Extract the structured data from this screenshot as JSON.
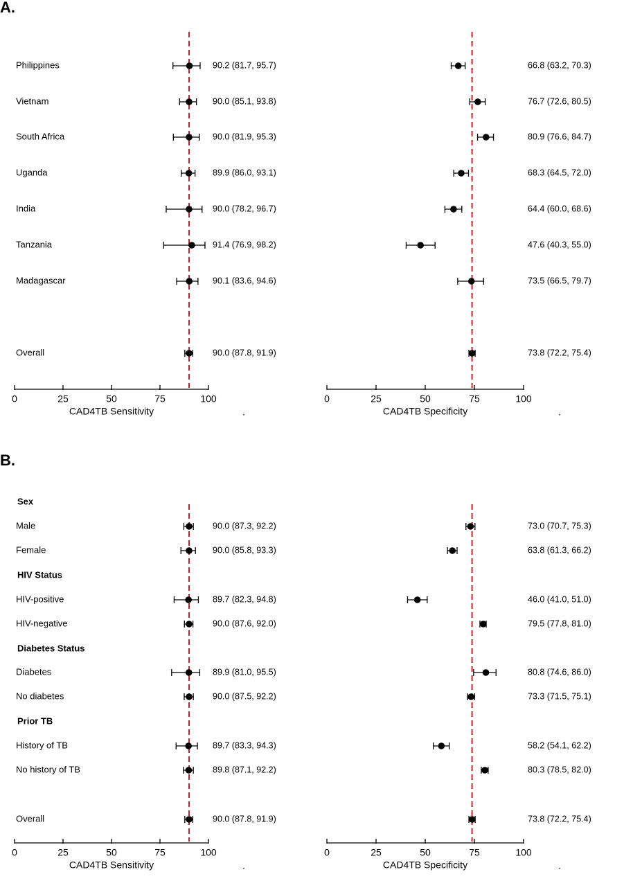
{
  "chart_data": [
    {
      "type": "forest",
      "panel_label": "A.",
      "reference_color": "#c8202a",
      "point_color": "#000000",
      "subplots": [
        {
          "xlabel": "CAD4TB Sensitivity",
          "trailing_mark": ".",
          "xlim": [
            0,
            100
          ],
          "xticks": [
            0,
            25,
            50,
            75,
            100
          ],
          "reference_line": 90,
          "rows": [
            {
              "label": "Philippines",
              "estimate": 90.2,
              "lower": 81.7,
              "upper": 95.7,
              "ci_text": "90.2 (81.7, 95.7)"
            },
            {
              "label": "Vietnam",
              "estimate": 90.0,
              "lower": 85.1,
              "upper": 93.8,
              "ci_text": "90.0 (85.1, 93.8)"
            },
            {
              "label": "South Africa",
              "estimate": 90.0,
              "lower": 81.9,
              "upper": 95.3,
              "ci_text": "90.0 (81.9, 95.3)"
            },
            {
              "label": "Uganda",
              "estimate": 89.9,
              "lower": 86.0,
              "upper": 93.1,
              "ci_text": "89.9 (86.0, 93.1)"
            },
            {
              "label": "India",
              "estimate": 90.0,
              "lower": 78.2,
              "upper": 96.7,
              "ci_text": "90.0 (78.2, 96.7)"
            },
            {
              "label": "Tanzania",
              "estimate": 91.4,
              "lower": 76.9,
              "upper": 98.2,
              "ci_text": "91.4 (76.9, 98.2)"
            },
            {
              "label": "Madagascar",
              "estimate": 90.1,
              "lower": 83.6,
              "upper": 94.6,
              "ci_text": "90.1 (83.6, 94.6)"
            },
            {
              "label": "Overall",
              "estimate": 90.0,
              "lower": 87.8,
              "upper": 91.9,
              "ci_text": "90.0 (87.8, 91.9)"
            }
          ]
        },
        {
          "xlabel": "CAD4TB Specificity",
          "trailing_mark": ".",
          "xlim": [
            0,
            100
          ],
          "xticks": [
            0,
            25,
            50,
            75,
            100
          ],
          "reference_line": 73.8,
          "rows": [
            {
              "label": "Philippines",
              "estimate": 66.8,
              "lower": 63.2,
              "upper": 70.3,
              "ci_text": "66.8 (63.2, 70.3)"
            },
            {
              "label": "Vietnam",
              "estimate": 76.7,
              "lower": 72.6,
              "upper": 80.5,
              "ci_text": "76.7 (72.6, 80.5)"
            },
            {
              "label": "South Africa",
              "estimate": 80.9,
              "lower": 76.6,
              "upper": 84.7,
              "ci_text": "80.9 (76.6, 84.7)"
            },
            {
              "label": "Uganda",
              "estimate": 68.3,
              "lower": 64.5,
              "upper": 72.0,
              "ci_text": "68.3 (64.5, 72.0)"
            },
            {
              "label": "India",
              "estimate": 64.4,
              "lower": 60.0,
              "upper": 68.6,
              "ci_text": "64.4 (60.0, 68.6)"
            },
            {
              "label": "Tanzania",
              "estimate": 47.6,
              "lower": 40.3,
              "upper": 55.0,
              "ci_text": "47.6 (40.3, 55.0)"
            },
            {
              "label": "Madagascar",
              "estimate": 73.5,
              "lower": 66.5,
              "upper": 79.7,
              "ci_text": "73.5 (66.5, 79.7)"
            },
            {
              "label": "Overall",
              "estimate": 73.8,
              "lower": 72.2,
              "upper": 75.4,
              "ci_text": "73.8 (72.2, 75.4)"
            }
          ]
        }
      ]
    },
    {
      "type": "forest",
      "panel_label": "B.",
      "reference_color": "#c8202a",
      "point_color": "#000000",
      "group_headers": [
        "Sex",
        "HIV Status",
        "Diabetes Status",
        "Prior TB"
      ],
      "subplots": [
        {
          "xlabel": "CAD4TB Sensitivity",
          "trailing_mark": ".",
          "xlim": [
            0,
            100
          ],
          "xticks": [
            0,
            25,
            50,
            75,
            100
          ],
          "reference_line": 90,
          "rows": [
            {
              "group": "Sex",
              "label": "Male",
              "estimate": 90.0,
              "lower": 87.3,
              "upper": 92.2,
              "ci_text": "90.0 (87.3, 92.2)"
            },
            {
              "group": "Sex",
              "label": "Female",
              "estimate": 90.0,
              "lower": 85.8,
              "upper": 93.3,
              "ci_text": "90.0 (85.8, 93.3)"
            },
            {
              "group": "HIV Status",
              "label": "HIV-positive",
              "estimate": 89.7,
              "lower": 82.3,
              "upper": 94.8,
              "ci_text": "89.7 (82.3, 94.8)"
            },
            {
              "group": "HIV Status",
              "label": "HIV-negative",
              "estimate": 90.0,
              "lower": 87.6,
              "upper": 92.0,
              "ci_text": "90.0 (87.6, 92.0)"
            },
            {
              "group": "Diabetes Status",
              "label": "Diabetes",
              "estimate": 89.9,
              "lower": 81.0,
              "upper": 95.5,
              "ci_text": "89.9 (81.0, 95.5)"
            },
            {
              "group": "Diabetes Status",
              "label": "No diabetes",
              "estimate": 90.0,
              "lower": 87.5,
              "upper": 92.2,
              "ci_text": "90.0 (87.5, 92.2)"
            },
            {
              "group": "Prior TB",
              "label": "History of TB",
              "estimate": 89.7,
              "lower": 83.3,
              "upper": 94.3,
              "ci_text": "89.7 (83.3, 94.3)"
            },
            {
              "group": "Prior TB",
              "label": "No history of TB",
              "estimate": 89.8,
              "lower": 87.1,
              "upper": 92.2,
              "ci_text": "89.8 (87.1, 92.2)"
            },
            {
              "group": "",
              "label": "Overall",
              "estimate": 90.0,
              "lower": 87.8,
              "upper": 91.9,
              "ci_text": "90.0 (87.8, 91.9)"
            }
          ]
        },
        {
          "xlabel": "CAD4TB Specificity",
          "trailing_mark": ".",
          "xlim": [
            0,
            100
          ],
          "xticks": [
            0,
            25,
            50,
            75,
            100
          ],
          "reference_line": 73.8,
          "rows": [
            {
              "group": "Sex",
              "label": "Male",
              "estimate": 73.0,
              "lower": 70.7,
              "upper": 75.3,
              "ci_text": "73.0 (70.7, 75.3)"
            },
            {
              "group": "Sex",
              "label": "Female",
              "estimate": 63.8,
              "lower": 61.3,
              "upper": 66.2,
              "ci_text": "63.8 (61.3, 66.2)"
            },
            {
              "group": "HIV Status",
              "label": "HIV-positive",
              "estimate": 46.0,
              "lower": 41.0,
              "upper": 51.0,
              "ci_text": "46.0 (41.0, 51.0)"
            },
            {
              "group": "HIV Status",
              "label": "HIV-negative",
              "estimate": 79.5,
              "lower": 77.8,
              "upper": 81.0,
              "ci_text": "79.5 (77.8, 81.0)"
            },
            {
              "group": "Diabetes Status",
              "label": "Diabetes",
              "estimate": 80.8,
              "lower": 74.6,
              "upper": 86.0,
              "ci_text": "80.8 (74.6, 86.0)"
            },
            {
              "group": "Diabetes Status",
              "label": "No diabetes",
              "estimate": 73.3,
              "lower": 71.5,
              "upper": 75.1,
              "ci_text": "73.3 (71.5, 75.1)"
            },
            {
              "group": "Prior TB",
              "label": "History of TB",
              "estimate": 58.2,
              "lower": 54.1,
              "upper": 62.2,
              "ci_text": "58.2 (54.1, 62.2)"
            },
            {
              "group": "Prior TB",
              "label": "No history of TB",
              "estimate": 80.3,
              "lower": 78.5,
              "upper": 82.0,
              "ci_text": "80.3 (78.5, 82.0)"
            },
            {
              "group": "",
              "label": "Overall",
              "estimate": 73.8,
              "lower": 72.2,
              "upper": 75.4,
              "ci_text": "73.8 (72.2, 75.4)"
            }
          ]
        }
      ]
    }
  ]
}
